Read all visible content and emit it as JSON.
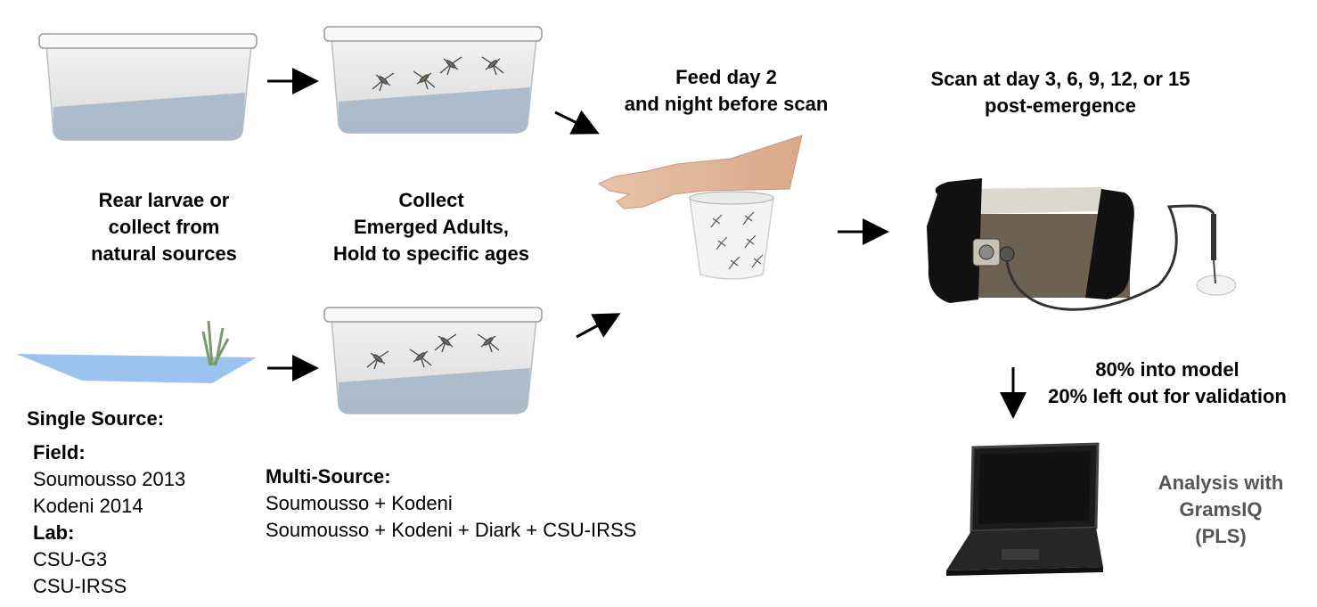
{
  "steps": {
    "rear": [
      "Rear larvae or",
      "collect from",
      "natural sources"
    ],
    "collect": [
      "Collect",
      "Emerged Adults,",
      "Hold to specific ages"
    ],
    "feed": [
      "Feed day 2",
      "and night before scan"
    ],
    "scan": [
      "Scan at day 3, 6, 9, 12, or 15",
      "post-emergence"
    ],
    "split": [
      "80% into model",
      "20% left out for validation"
    ],
    "analysis": [
      "Analysis with",
      "GramsIQ",
      "(PLS)"
    ]
  },
  "single_source": {
    "title": "Single Source:",
    "field_heading": "Field:",
    "field_items": [
      "Soumousso 2013",
      "Kodeni 2014"
    ],
    "lab_heading": "Lab:",
    "lab_items": [
      "CSU-G3",
      "CSU-IRSS"
    ]
  },
  "multi_source": {
    "title": "Multi-Source:",
    "items": [
      "Soumousso + Kodeni",
      "Soumousso + Kodeni + Diark + CSU-IRSS"
    ]
  },
  "colors": {
    "water": "#a9b9c8",
    "pond": "#9cc3ee",
    "spectrometer_body": "#6e6152",
    "analysis_text": "#555555"
  }
}
